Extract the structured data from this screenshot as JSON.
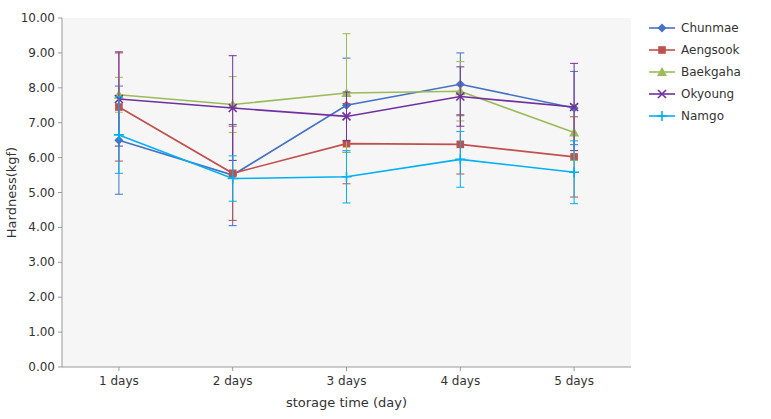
{
  "chart_data": {
    "type": "line",
    "x_label": "storage time (day)",
    "y_label": "Hardness(kgf)",
    "x": [
      1,
      2,
      3,
      4,
      5
    ],
    "xlim": [
      0.5,
      5.5
    ],
    "xticks": [
      {
        "value": 1,
        "label": "1 days"
      },
      {
        "value": 2,
        "label": "2 days"
      },
      {
        "value": 3,
        "label": "3 days"
      },
      {
        "value": 4,
        "label": "4 days"
      },
      {
        "value": 5,
        "label": "5 days"
      }
    ],
    "ylim": [
      0.0,
      10.0
    ],
    "yticks": [
      {
        "value": 0,
        "label": "0.00"
      },
      {
        "value": 1,
        "label": "1.00"
      },
      {
        "value": 2,
        "label": "2.00"
      },
      {
        "value": 3,
        "label": "3.00"
      },
      {
        "value": 4,
        "label": "4.00"
      },
      {
        "value": 5,
        "label": "5.00"
      },
      {
        "value": 6,
        "label": "6.00"
      },
      {
        "value": 7,
        "label": "7.00"
      },
      {
        "value": 8,
        "label": "8.00"
      },
      {
        "value": 9,
        "label": "9.00"
      },
      {
        "value": 10,
        "label": "10.00"
      }
    ],
    "grid": false,
    "legend": "right",
    "series": [
      {
        "name": "Chunmae",
        "color": "#4472C4",
        "marker": "diamond",
        "values": [
          6.5,
          5.5,
          7.5,
          8.1,
          7.42
        ],
        "yerr": [
          1.55,
          1.45,
          1.35,
          0.9,
          1.05
        ]
      },
      {
        "name": "Aengsook",
        "color": "#C0504D",
        "marker": "square",
        "values": [
          7.45,
          5.55,
          6.4,
          6.38,
          6.02
        ],
        "yerr": [
          1.55,
          1.35,
          1.15,
          0.85,
          1.15
        ]
      },
      {
        "name": "Baekgaha",
        "color": "#9BBB59",
        "marker": "triangle",
        "values": [
          7.8,
          7.52,
          7.85,
          7.9,
          6.72
        ],
        "yerr": [
          0.5,
          0.8,
          1.7,
          0.85,
          0.8
        ]
      },
      {
        "name": "Okyoung",
        "color": "#7030A0",
        "marker": "x",
        "values": [
          7.68,
          7.42,
          7.18,
          7.75,
          7.45
        ],
        "yerr": [
          1.35,
          1.5,
          0.7,
          0.85,
          1.25
        ]
      },
      {
        "name": "Namgo",
        "color": "#00B0F0",
        "marker": "plus",
        "values": [
          6.65,
          5.4,
          5.45,
          5.95,
          5.58
        ],
        "yerr": [
          1.1,
          0.65,
          0.75,
          0.8,
          0.9
        ]
      }
    ]
  }
}
